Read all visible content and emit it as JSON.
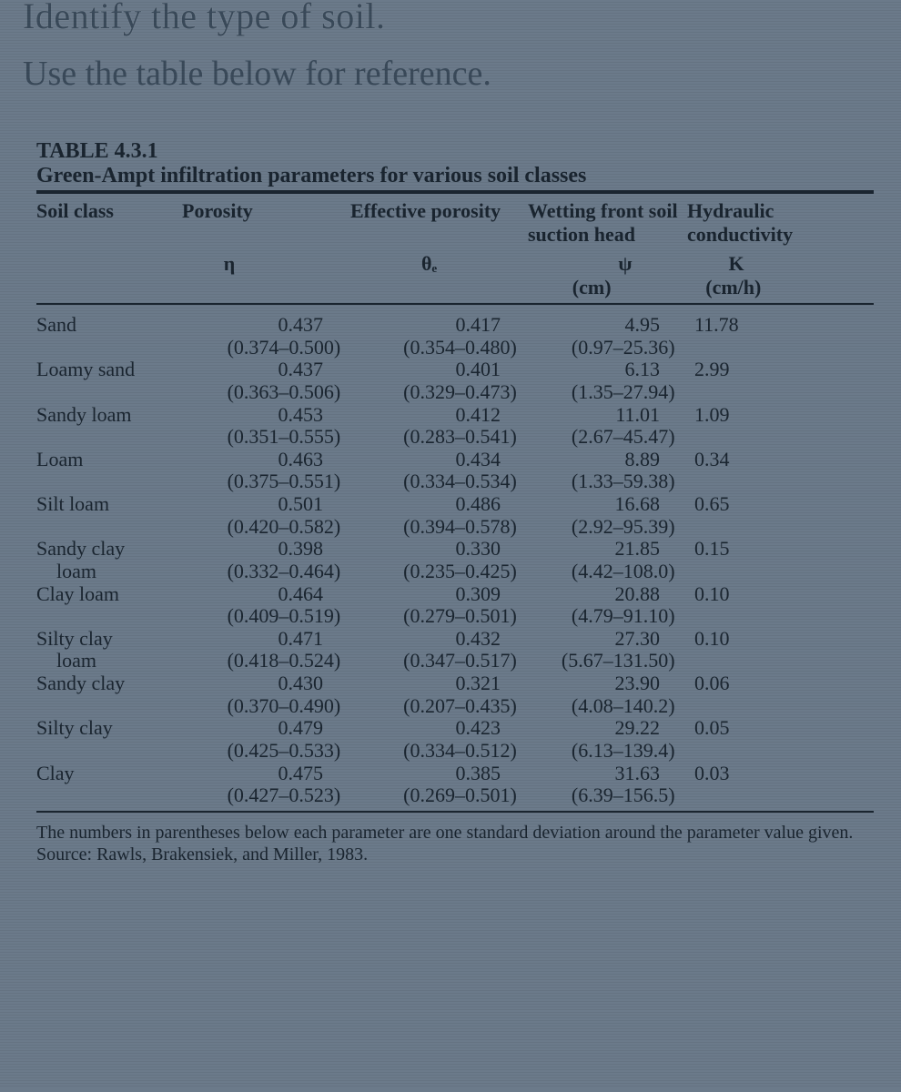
{
  "instruction_top": "Identify the type of soil.",
  "instruction_sub": "Use the table below for reference.",
  "table": {
    "label": "TABLE 4.3.1",
    "title": "Green-Ampt infiltration parameters for various soil classes",
    "columns": {
      "soil": {
        "header": "Soil class",
        "symbol": "",
        "unit": ""
      },
      "poros": {
        "header": "Porosity",
        "symbol": "η",
        "unit": ""
      },
      "eff": {
        "header": "Effective porosity",
        "symbol": "θₑ",
        "unit": ""
      },
      "wet": {
        "header": "Wetting front soil suction head",
        "symbol": "ψ",
        "unit": "(cm)"
      },
      "hyd": {
        "header": "Hydraulic conductivity",
        "symbol": "K",
        "unit": "(cm/h)"
      }
    },
    "rows": [
      {
        "soil": "Sand",
        "p": "0.437",
        "pr": "(0.374–0.500)",
        "e": "0.417",
        "er": "(0.354–0.480)",
        "w": "4.95",
        "wr": "(0.97–25.36)",
        "k": "11.78"
      },
      {
        "soil": "Loamy sand",
        "p": "0.437",
        "pr": "(0.363–0.506)",
        "e": "0.401",
        "er": "(0.329–0.473)",
        "w": "6.13",
        "wr": "(1.35–27.94)",
        "k": "2.99"
      },
      {
        "soil": "Sandy loam",
        "p": "0.453",
        "pr": "(0.351–0.555)",
        "e": "0.412",
        "er": "(0.283–0.541)",
        "w": "11.01",
        "wr": "(2.67–45.47)",
        "k": "1.09"
      },
      {
        "soil": "Loam",
        "p": "0.463",
        "pr": "(0.375–0.551)",
        "e": "0.434",
        "er": "(0.334–0.534)",
        "w": "8.89",
        "wr": "(1.33–59.38)",
        "k": "0.34"
      },
      {
        "soil": "Silt loam",
        "p": "0.501",
        "pr": "(0.420–0.582)",
        "e": "0.486",
        "er": "(0.394–0.578)",
        "w": "16.68",
        "wr": "(2.92–95.39)",
        "k": "0.65"
      },
      {
        "soil": "Sandy clay",
        "soil2": "loam",
        "p": "0.398",
        "pr": "(0.332–0.464)",
        "e": "0.330",
        "er": "(0.235–0.425)",
        "w": "21.85",
        "wr": "(4.42–108.0)",
        "k": "0.15"
      },
      {
        "soil": "Clay loam",
        "p": "0.464",
        "pr": "(0.409–0.519)",
        "e": "0.309",
        "er": "(0.279–0.501)",
        "w": "20.88",
        "wr": "(4.79–91.10)",
        "k": "0.10"
      },
      {
        "soil": "Silty clay",
        "soil2": "loam",
        "p": "0.471",
        "pr": "(0.418–0.524)",
        "e": "0.432",
        "er": "(0.347–0.517)",
        "w": "27.30",
        "wr": "(5.67–131.50)",
        "k": "0.10"
      },
      {
        "soil": "Sandy clay",
        "p": "0.430",
        "pr": "(0.370–0.490)",
        "e": "0.321",
        "er": "(0.207–0.435)",
        "w": "23.90",
        "wr": "(4.08–140.2)",
        "k": "0.06"
      },
      {
        "soil": "Silty clay",
        "p": "0.479",
        "pr": "(0.425–0.533)",
        "e": "0.423",
        "er": "(0.334–0.512)",
        "w": "29.22",
        "wr": "(6.13–139.4)",
        "k": "0.05"
      },
      {
        "soil": "Clay",
        "p": "0.475",
        "pr": "(0.427–0.523)",
        "e": "0.385",
        "er": "(0.269–0.501)",
        "w": "31.63",
        "wr": "(6.39–156.5)",
        "k": "0.03"
      }
    ],
    "footnote": "The numbers in parentheses below each parameter are one standard deviation around the parameter value given. Source: Rawls, Brakensiek, and Miller, 1983."
  }
}
